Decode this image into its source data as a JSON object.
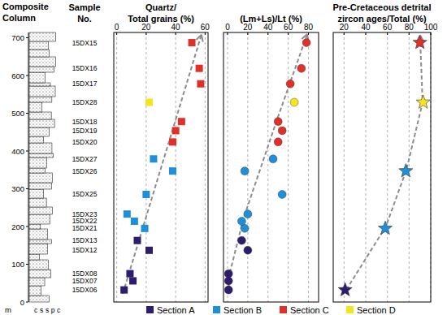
{
  "column": {
    "title": "Composite\nColumn",
    "ylim": [
      0,
      714
    ],
    "yticks": [
      0,
      100,
      200,
      300,
      400,
      500,
      600,
      700
    ],
    "unit": "m",
    "grain_size": [
      "c",
      "s",
      "s",
      "p",
      "c"
    ]
  },
  "samples": {
    "header": "Sample\nNo.",
    "names": [
      "15DX06",
      "15DX07",
      "15DX08",
      "15DX12",
      "15DX13",
      "15DX21",
      "15DX22",
      "15DX23",
      "15DX25",
      "15DX26",
      "15DX27",
      "15DX20",
      "15DX19",
      "15DX18",
      "15DX28",
      "15DX17",
      "15DX16",
      "15DX15"
    ],
    "depths": [
      32,
      56,
      75,
      137,
      163,
      195,
      214,
      233,
      285,
      347,
      379,
      424,
      454,
      478,
      529,
      578,
      619,
      687
    ]
  },
  "chart_data": [
    {
      "type": "scatter",
      "title": "Quartz/\nTotal grains (%)",
      "marker": "square",
      "xlim": [
        -2,
        62
      ],
      "xticks": [
        0,
        20,
        40,
        60
      ],
      "ylim": [
        0,
        714
      ],
      "grid": true,
      "tick_labels": "x",
      "series": [
        {
          "name": "Section A",
          "color": "#2e1d6e",
          "x": [
            5,
            11,
            9,
            22,
            14
          ],
          "values": [
            32,
            56,
            75,
            137,
            163
          ]
        },
        {
          "name": "Section B",
          "color": "#1e8fd8",
          "x": [
            19,
            12,
            7,
            20,
            38,
            25
          ],
          "values": [
            195,
            214,
            233,
            285,
            347,
            379
          ]
        },
        {
          "name": "Section C",
          "color": "#e0302a",
          "x": [
            38,
            40,
            44,
            57,
            56,
            51
          ],
          "values": [
            424,
            454,
            478,
            578,
            619,
            687
          ]
        },
        {
          "name": "Section D",
          "color": "#f6e41f",
          "x": [
            22
          ],
          "values": [
            529
          ]
        }
      ]
    },
    {
      "type": "scatter",
      "title": "(Lm+Ls)/Lt (%)",
      "marker": "circle",
      "xlim": [
        -4,
        90
      ],
      "xticks": [
        0,
        20,
        40,
        60,
        80
      ],
      "ylim": [
        0,
        714
      ],
      "grid": true,
      "tick_labels": "x",
      "series": [
        {
          "name": "Section A",
          "color": "#2e1d6e",
          "x": [
            1,
            1,
            1,
            20,
            14
          ],
          "values": [
            32,
            56,
            75,
            137,
            163
          ]
        },
        {
          "name": "Section B",
          "color": "#1e8fd8",
          "x": [
            17,
            14,
            20,
            54,
            17,
            45
          ],
          "values": [
            195,
            214,
            233,
            285,
            347,
            379
          ]
        },
        {
          "name": "Section C",
          "color": "#e0302a",
          "x": [
            50,
            54,
            50,
            62,
            73,
            78
          ],
          "values": [
            424,
            454,
            478,
            578,
            619,
            687
          ]
        },
        {
          "name": "Section D",
          "color": "#f6e41f",
          "x": [
            66
          ],
          "values": [
            529
          ]
        }
      ]
    },
    {
      "type": "scatter",
      "title": "Pre-Cretaceous detrital\nzircon ages/Total (%)",
      "marker": "star",
      "xlim": [
        10,
        100
      ],
      "xticks": [
        20,
        40,
        60,
        80,
        100
      ],
      "ylim": [
        0,
        714
      ],
      "grid": true,
      "tick_labels": "x",
      "series": [
        {
          "name": "Section A",
          "color": "#2e1d6e",
          "x": [
            21
          ],
          "values": [
            32
          ]
        },
        {
          "name": "Section B",
          "color": "#1e8fd8",
          "x": [
            58,
            77
          ],
          "values": [
            195,
            347
          ]
        },
        {
          "name": "Section C",
          "color": "#e0302a",
          "x": [
            90
          ],
          "values": [
            687
          ]
        },
        {
          "name": "Section D",
          "color": "#f6e41f",
          "x": [
            93
          ],
          "values": [
            529
          ]
        }
      ]
    }
  ]
}
